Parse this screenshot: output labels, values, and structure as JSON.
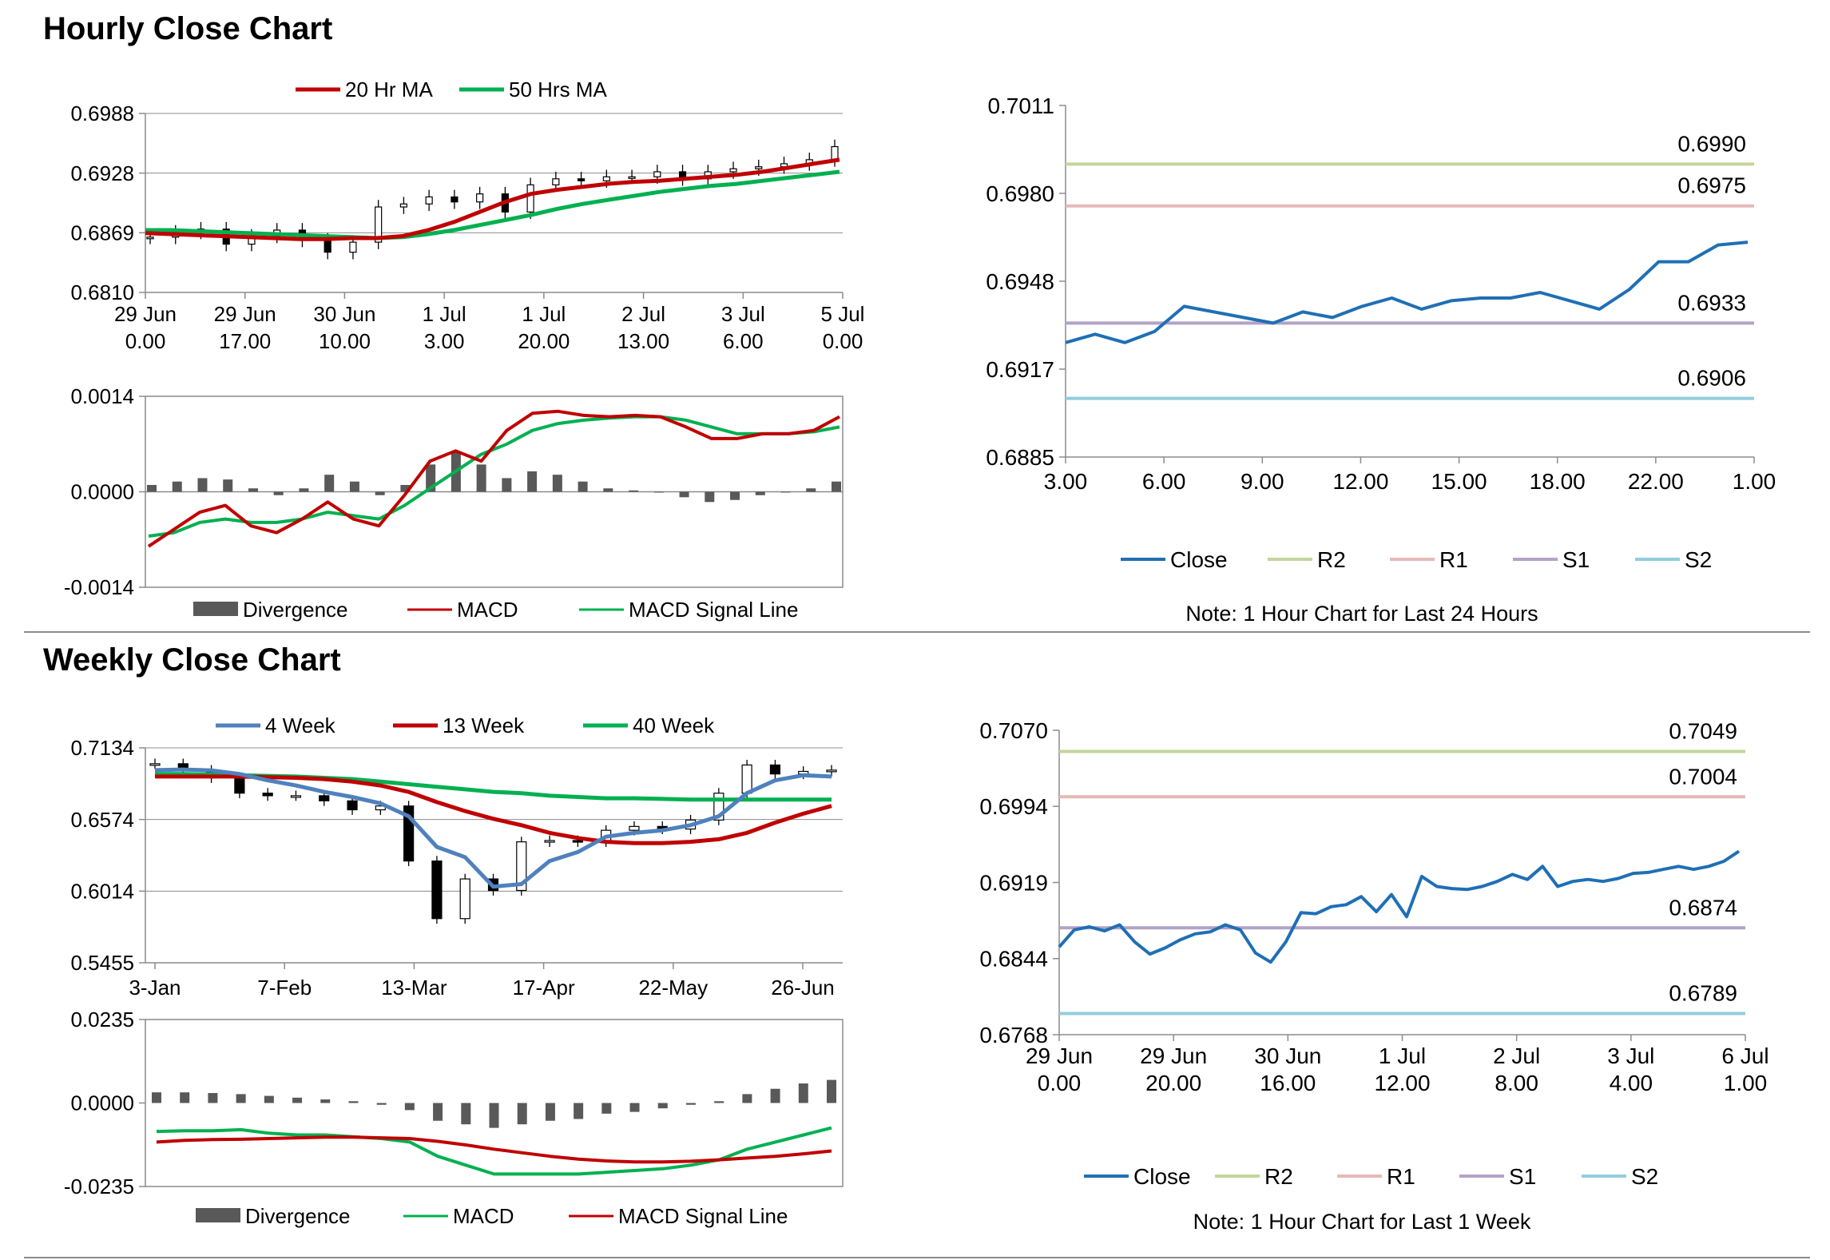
{
  "sections": {
    "hourly_title": "Hourly Close Chart",
    "weekly_title": "Weekly Close Chart"
  },
  "notes": {
    "hourly": "Note: 1 Hour Chart for Last 24 Hours",
    "weekly": "Note: 1 Hour Chart for Last 1 Week"
  },
  "colors": {
    "ma20": "#c00000",
    "ma50": "#00b050",
    "ma4": "#4f81bd",
    "ma13": "#c00000",
    "ma40": "#00b050",
    "macd_red": "#c00000",
    "macd_green": "#00b050",
    "divergence": "#595959",
    "close": "#1f6fb5",
    "r2": "#c3d69b",
    "r1": "#e6b9b8",
    "s1": "#b3a2c7",
    "s2": "#93cddd"
  },
  "chart_data": [
    {
      "id": "hourly-price",
      "type": "candlestick",
      "legend": [
        "20 Hr MA",
        "50 Hrs MA"
      ],
      "y_ticks": [
        "0.6988",
        "0.6928",
        "0.6869",
        "0.6810"
      ],
      "ylim": [
        0.681,
        0.6988
      ],
      "x_ticks": [
        [
          "29 Jun",
          "0.00"
        ],
        [
          "29 Jun",
          "17.00"
        ],
        [
          "30 Jun",
          "10.00"
        ],
        [
          "1 Jul",
          "3.00"
        ],
        [
          "1 Jul",
          "20.00"
        ],
        [
          "2 Jul",
          "13.00"
        ],
        [
          "3 Jul",
          "6.00"
        ],
        [
          "5 Jul",
          "0.00"
        ]
      ],
      "series": [
        {
          "name": "20 Hr MA",
          "values": [
            0.6869,
            0.6868,
            0.6867,
            0.6866,
            0.6865,
            0.6864,
            0.6863,
            0.6863,
            0.6864,
            0.6864,
            0.6866,
            0.6872,
            0.688,
            0.689,
            0.69,
            0.6908,
            0.6912,
            0.6915,
            0.6918,
            0.692,
            0.6921,
            0.6923,
            0.6925,
            0.6927,
            0.693,
            0.6934,
            0.6938,
            0.6942
          ]
        },
        {
          "name": "50 Hrs MA",
          "values": [
            0.6872,
            0.6872,
            0.6871,
            0.687,
            0.6869,
            0.6868,
            0.6867,
            0.6866,
            0.6865,
            0.6864,
            0.6865,
            0.6868,
            0.6872,
            0.6877,
            0.6882,
            0.6887,
            0.6893,
            0.6898,
            0.6902,
            0.6906,
            0.691,
            0.6913,
            0.6916,
            0.6918,
            0.6921,
            0.6924,
            0.6927,
            0.693
          ]
        },
        {
          "name": "Price",
          "values": [
            0.6865,
            0.687,
            0.6873,
            0.6858,
            0.6866,
            0.6872,
            0.6862,
            0.685,
            0.686,
            0.6895,
            0.6898,
            0.6905,
            0.69,
            0.6908,
            0.689,
            0.6917,
            0.6923,
            0.6921,
            0.6925,
            0.6925,
            0.693,
            0.6923,
            0.693,
            0.6933,
            0.6935,
            0.6938,
            0.6942,
            0.6955
          ]
        }
      ]
    },
    {
      "id": "hourly-macd",
      "type": "line",
      "legend": [
        "Divergence",
        "MACD",
        "MACD Signal Line"
      ],
      "y_ticks": [
        "0.0014",
        "0.0000",
        "-0.0014"
      ],
      "ylim": [
        -0.0014,
        0.0014
      ],
      "series": [
        {
          "name": "MACD",
          "values": [
            -0.0008,
            -0.00055,
            -0.0003,
            -0.0002,
            -0.0005,
            -0.0006,
            -0.0004,
            -0.00015,
            -0.0004,
            -0.0005,
            -5e-05,
            0.00045,
            0.0006,
            0.00045,
            0.0009,
            0.00115,
            0.00118,
            0.00112,
            0.0011,
            0.00112,
            0.0011,
            0.00095,
            0.00078,
            0.00078,
            0.00085,
            0.00085,
            0.0009,
            0.0011
          ]
        },
        {
          "name": "MACD Signal Line",
          "values": [
            -0.00065,
            -0.0006,
            -0.00045,
            -0.0004,
            -0.00045,
            -0.00045,
            -0.0004,
            -0.0003,
            -0.00035,
            -0.0004,
            -0.0002,
            5e-05,
            0.0003,
            0.00055,
            0.0007,
            0.0009,
            0.001,
            0.00105,
            0.00108,
            0.0011,
            0.0011,
            0.00105,
            0.00095,
            0.00085,
            0.00085,
            0.00085,
            0.00088,
            0.00095
          ]
        },
        {
          "name": "Divergence",
          "values": [
            0.0001,
            0.00015,
            0.0002,
            0.00018,
            5e-05,
            -5e-05,
            5e-05,
            0.00025,
            0.00015,
            -5e-05,
            0.0001,
            0.0004,
            0.00058,
            0.0004,
            0.0002,
            0.0003,
            0.00025,
            0.00015,
            5e-05,
            2e-05,
            0.0,
            -8e-05,
            -0.00015,
            -0.00012,
            -5e-05,
            0.0,
            5e-05,
            0.00015
          ]
        }
      ]
    },
    {
      "id": "hourly-close",
      "type": "line",
      "y_ticks": [
        "0.7011",
        "0.6980",
        "0.6948",
        "0.6917",
        "0.6885"
      ],
      "ylim": [
        0.6885,
        0.7011
      ],
      "x_ticks": [
        "3.00",
        "6.00",
        "9.00",
        "12.00",
        "15.00",
        "18.00",
        "22.00",
        "1.00"
      ],
      "legend": [
        "Close",
        "R2",
        "R1",
        "S1",
        "S2"
      ],
      "levels": {
        "R2": 0.699,
        "R1": 0.6975,
        "S1": 0.6933,
        "S2": 0.6906
      },
      "level_labels": {
        "R2": "0.6990",
        "R1": "0.6975",
        "S1": "0.6933",
        "S2": "0.6906"
      },
      "series": [
        {
          "name": "Close",
          "values": [
            0.6926,
            0.6929,
            0.6926,
            0.693,
            0.6939,
            0.6937,
            0.6935,
            0.6933,
            0.6937,
            0.6935,
            0.6939,
            0.6942,
            0.6938,
            0.6941,
            0.6942,
            0.6942,
            0.6944,
            0.6941,
            0.6938,
            0.6945,
            0.6955,
            0.6955,
            0.6961,
            0.6962
          ]
        }
      ]
    },
    {
      "id": "weekly-price",
      "type": "candlestick",
      "legend": [
        "4 Week",
        "13 Week",
        "40 Week"
      ],
      "y_ticks": [
        "0.7134",
        "0.6574",
        "0.6014",
        "0.5455"
      ],
      "ylim": [
        0.5455,
        0.7134
      ],
      "x_ticks": [
        "3-Jan",
        "7-Feb",
        "13-Mar",
        "17-Apr",
        "22-May",
        "26-Jun"
      ],
      "series": [
        {
          "name": "4 Week",
          "values": [
            0.696,
            0.6965,
            0.6958,
            0.693,
            0.688,
            0.684,
            0.679,
            0.675,
            0.67,
            0.66,
            0.636,
            0.628,
            0.605,
            0.607,
            0.625,
            0.632,
            0.644,
            0.647,
            0.649,
            0.653,
            0.66,
            0.678,
            0.688,
            0.692,
            0.691
          ]
        },
        {
          "name": "13 Week",
          "values": [
            0.691,
            0.691,
            0.691,
            0.691,
            0.6905,
            0.69,
            0.689,
            0.687,
            0.684,
            0.679,
            0.671,
            0.664,
            0.658,
            0.653,
            0.647,
            0.643,
            0.64,
            0.639,
            0.639,
            0.64,
            0.642,
            0.647,
            0.655,
            0.662,
            0.668
          ]
        },
        {
          "name": "40 Week",
          "values": [
            0.693,
            0.693,
            0.6925,
            0.692,
            0.6915,
            0.691,
            0.69,
            0.689,
            0.687,
            0.685,
            0.683,
            0.681,
            0.679,
            0.678,
            0.676,
            0.675,
            0.674,
            0.674,
            0.6735,
            0.673,
            0.673,
            0.673,
            0.673,
            0.673,
            0.673
          ]
        },
        {
          "name": "Price",
          "values": [
            0.701,
            0.696,
            0.69,
            0.678,
            0.676,
            0.676,
            0.672,
            0.665,
            0.668,
            0.625,
            0.58,
            0.611,
            0.602,
            0.64,
            0.641,
            0.64,
            0.649,
            0.652,
            0.65,
            0.657,
            0.678,
            0.7,
            0.693,
            0.695,
            0.696
          ]
        }
      ]
    },
    {
      "id": "weekly-macd",
      "type": "line",
      "legend": [
        "Divergence",
        "MACD",
        "MACD Signal Line"
      ],
      "y_ticks": [
        "0.0235",
        "0.0000",
        "-0.0235"
      ],
      "ylim": [
        -0.0235,
        0.0235
      ],
      "series": [
        {
          "name": "MACD",
          "values": [
            -0.008,
            -0.0078,
            -0.0078,
            -0.0075,
            -0.0085,
            -0.009,
            -0.009,
            -0.0095,
            -0.01,
            -0.011,
            -0.015,
            -0.0175,
            -0.02,
            -0.02,
            -0.02,
            -0.02,
            -0.0195,
            -0.019,
            -0.0185,
            -0.0175,
            -0.016,
            -0.013,
            -0.011,
            -0.009,
            -0.007
          ]
        },
        {
          "name": "MACD Signal Line",
          "values": [
            -0.011,
            -0.0105,
            -0.0103,
            -0.0102,
            -0.01,
            -0.0098,
            -0.0096,
            -0.0096,
            -0.0098,
            -0.01,
            -0.0108,
            -0.0118,
            -0.013,
            -0.014,
            -0.015,
            -0.0158,
            -0.0163,
            -0.0166,
            -0.0166,
            -0.0164,
            -0.016,
            -0.0155,
            -0.015,
            -0.0143,
            -0.0135
          ]
        },
        {
          "name": "Divergence",
          "values": [
            0.003,
            0.003,
            0.0028,
            0.0025,
            0.002,
            0.0015,
            0.001,
            0.0005,
            -0.0005,
            -0.002,
            -0.005,
            -0.006,
            -0.007,
            -0.006,
            -0.005,
            -0.0045,
            -0.003,
            -0.0025,
            -0.0015,
            -0.0005,
            0.0005,
            0.0025,
            0.004,
            0.0055,
            0.0065
          ]
        }
      ]
    },
    {
      "id": "weekly-close",
      "type": "line",
      "y_ticks": [
        "0.7070",
        "0.6994",
        "0.6919",
        "0.6844",
        "0.6768"
      ],
      "ylim": [
        0.6768,
        0.707
      ],
      "x_ticks": [
        [
          "29 Jun",
          "0.00"
        ],
        [
          "29 Jun",
          "20.00"
        ],
        [
          "30 Jun",
          "16.00"
        ],
        [
          "1 Jul",
          "12.00"
        ],
        [
          "2 Jul",
          "8.00"
        ],
        [
          "3 Jul",
          "4.00"
        ],
        [
          "6 Jul",
          "1.00"
        ]
      ],
      "legend": [
        "Close",
        "R2",
        "R1",
        "S1",
        "S2"
      ],
      "levels": {
        "R2": 0.7049,
        "R1": 0.7004,
        "S1": 0.6874,
        "S2": 0.6789
      },
      "level_labels": {
        "R2": "0.7049",
        "R1": "0.7004",
        "S1": "0.6874",
        "S2": "0.6789"
      },
      "series": [
        {
          "name": "Close",
          "values": [
            0.6855,
            0.6872,
            0.6875,
            0.6871,
            0.6877,
            0.686,
            0.6848,
            0.6854,
            0.6862,
            0.6868,
            0.687,
            0.6877,
            0.6872,
            0.6849,
            0.684,
            0.686,
            0.6889,
            0.6888,
            0.6895,
            0.6897,
            0.6905,
            0.689,
            0.6907,
            0.6885,
            0.6925,
            0.6915,
            0.6913,
            0.6912,
            0.6915,
            0.692,
            0.6927,
            0.6922,
            0.6935,
            0.6915,
            0.692,
            0.6922,
            0.692,
            0.6923,
            0.6928,
            0.6929,
            0.6932,
            0.6935,
            0.6932,
            0.6935,
            0.694,
            0.695
          ]
        }
      ]
    }
  ]
}
